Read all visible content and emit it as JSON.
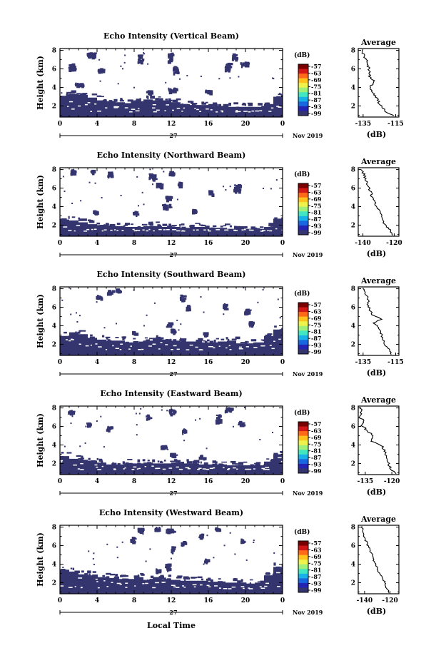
{
  "chart_data": {
    "type": "heatmap",
    "date_label": "Nov 2019",
    "day_label": "27",
    "xlabel_bottom": "Local Time",
    "x_ticks": [
      "0",
      "4",
      "8",
      "12",
      "16",
      "20",
      "0"
    ],
    "xlim": [
      0,
      24
    ],
    "ylabel": "Height (km)",
    "y_ticks": [
      "2",
      "4",
      "6",
      "8"
    ],
    "ylim": [
      0.8,
      8.2
    ],
    "colorbar": {
      "unit": "(dB)",
      "labels": [
        "-57",
        "-63",
        "-69",
        "-75",
        "-81",
        "-87",
        "-93",
        "-99"
      ],
      "colors": [
        "#7a0000",
        "#d01616",
        "#ff6a1a",
        "#ffc21c",
        "#eef24c",
        "#9ff07a",
        "#42e6c0",
        "#18b2e8",
        "#1866e0",
        "#2424b4",
        "#34346e"
      ]
    },
    "avg_title": "Average",
    "avg_xlabel": "(dB)",
    "panels": [
      {
        "title": "Echo Intensity (Vertical Beam)",
        "avg_ticks": [
          "-135",
          "-115"
        ],
        "avg_xlim": [
          -138,
          -113
        ],
        "layer_top": [
          3.1,
          3.3,
          3.2,
          2.9,
          2.6,
          2.5,
          2.4,
          2.3,
          2.5,
          2.7,
          2.6,
          2.6,
          2.4,
          2.2,
          2.1,
          2.1,
          2.2,
          2.0,
          1.9,
          1.9,
          1.9,
          1.9,
          2.2,
          3.0,
          3.6
        ],
        "clusters": [
          [
            1.2,
            6.3,
            0.6,
            0.7
          ],
          [
            3.2,
            7.6,
            0.9,
            0.4
          ],
          [
            4.3,
            5.9,
            0.6,
            0.4
          ],
          [
            2.0,
            4.4,
            0.8,
            0.3
          ],
          [
            8.6,
            7.2,
            0.5,
            0.9
          ],
          [
            11.8,
            7.3,
            0.4,
            1.0
          ],
          [
            12.4,
            6.0,
            0.5,
            0.7
          ],
          [
            18.0,
            6.3,
            0.6,
            0.8
          ],
          [
            18.7,
            7.4,
            0.4,
            0.6
          ],
          [
            19.8,
            6.6,
            0.8,
            0.4
          ],
          [
            12.0,
            3.8,
            0.8,
            0.4
          ],
          [
            15.9,
            3.6,
            0.7,
            0.3
          ],
          [
            9.5,
            3.6,
            0.5,
            0.3
          ]
        ],
        "avg_profile": [
          [
            0.9,
            -116
          ],
          [
            1.4,
            -121
          ],
          [
            2.0,
            -124
          ],
          [
            2.6,
            -126
          ],
          [
            3.2,
            -128
          ],
          [
            3.7,
            -130
          ],
          [
            4.2,
            -130
          ],
          [
            4.6,
            -128
          ],
          [
            5.2,
            -131
          ],
          [
            5.8,
            -131
          ],
          [
            6.4,
            -132
          ],
          [
            7.0,
            -133
          ],
          [
            7.6,
            -135
          ],
          [
            8.1,
            -135
          ]
        ]
      },
      {
        "title": "Echo Intensity (Northward Beam)",
        "avg_ticks": [
          "-140",
          "-120"
        ],
        "avg_xlim": [
          -143,
          -117
        ],
        "layer_top": [
          2.6,
          2.5,
          2.3,
          2.1,
          2.0,
          1.9,
          1.9,
          1.8,
          1.8,
          1.9,
          1.9,
          1.8,
          1.8,
          1.7,
          1.8,
          1.8,
          1.7,
          1.7,
          1.6,
          1.6,
          1.6,
          1.6,
          1.8,
          2.7,
          3.4
        ],
        "clusters": [
          [
            1.3,
            7.8,
            0.4,
            0.5
          ],
          [
            3.4,
            7.9,
            0.3,
            0.3
          ],
          [
            5.3,
            7.6,
            0.4,
            0.5
          ],
          [
            9.9,
            7.3,
            0.7,
            0.6
          ],
          [
            10.6,
            6.4,
            0.5,
            0.4
          ],
          [
            11.9,
            7.7,
            0.4,
            0.4
          ],
          [
            11.4,
            4.1,
            0.8,
            0.4
          ],
          [
            11.6,
            5.0,
            0.6,
            0.4
          ],
          [
            12.8,
            6.5,
            0.3,
            0.4
          ],
          [
            16.2,
            5.6,
            0.4,
            0.4
          ],
          [
            19.0,
            6.1,
            0.6,
            0.7
          ],
          [
            3.7,
            3.5,
            0.4,
            0.3
          ],
          [
            8.1,
            3.4,
            0.5,
            0.3
          ],
          [
            14.4,
            3.6,
            0.4,
            0.3
          ]
        ],
        "avg_profile": [
          [
            0.9,
            -121
          ],
          [
            1.5,
            -123
          ],
          [
            2.0,
            -126
          ],
          [
            2.6,
            -127
          ],
          [
            3.2,
            -128
          ],
          [
            3.8,
            -131
          ],
          [
            4.4,
            -132
          ],
          [
            5.0,
            -134
          ],
          [
            5.6,
            -135
          ],
          [
            6.2,
            -137
          ],
          [
            6.8,
            -138
          ],
          [
            7.4,
            -139
          ],
          [
            8.0,
            -141
          ]
        ]
      },
      {
        "title": "Echo Intensity (Southward Beam)",
        "avg_ticks": [
          "-135",
          "-115"
        ],
        "avg_xlim": [
          -138,
          -113
        ],
        "layer_top": [
          2.9,
          3.3,
          3.1,
          2.7,
          2.5,
          2.4,
          2.4,
          2.2,
          2.2,
          2.4,
          2.7,
          2.5,
          2.4,
          2.3,
          2.3,
          2.2,
          2.2,
          2.3,
          2.4,
          2.1,
          2.1,
          2.2,
          2.9,
          3.6,
          3.4
        ],
        "clusters": [
          [
            5.3,
            7.7,
            0.6,
            0.4
          ],
          [
            6.2,
            7.9,
            0.4,
            0.3
          ],
          [
            4.1,
            7.2,
            0.5,
            0.3
          ],
          [
            13.1,
            7.1,
            0.4,
            0.6
          ],
          [
            13.7,
            6.0,
            0.3,
            0.6
          ],
          [
            17.7,
            6.2,
            0.4,
            0.6
          ],
          [
            20.1,
            5.6,
            0.5,
            0.5
          ],
          [
            20.5,
            4.3,
            0.4,
            0.4
          ],
          [
            11.7,
            4.2,
            0.6,
            0.4
          ],
          [
            12.1,
            3.5,
            0.4,
            0.4
          ],
          [
            7.9,
            3.3,
            0.4,
            0.3
          ],
          [
            15.6,
            3.2,
            0.4,
            0.3
          ]
        ],
        "avg_profile": [
          [
            0.9,
            -117
          ],
          [
            1.5,
            -119
          ],
          [
            2.0,
            -122
          ],
          [
            2.6,
            -123
          ],
          [
            3.2,
            -124
          ],
          [
            3.8,
            -125
          ],
          [
            4.3,
            -128
          ],
          [
            4.7,
            -124
          ],
          [
            5.2,
            -129
          ],
          [
            5.8,
            -131
          ],
          [
            6.4,
            -132
          ],
          [
            7.0,
            -132
          ],
          [
            7.6,
            -134
          ],
          [
            8.1,
            -135
          ]
        ]
      },
      {
        "title": "Echo Intensity (Eastward Beam)",
        "avg_ticks": [
          "-135",
          "-120"
        ],
        "avg_xlim": [
          -139,
          -116
        ],
        "layer_top": [
          2.8,
          2.5,
          2.4,
          2.3,
          2.1,
          1.9,
          1.9,
          2.0,
          2.0,
          2.1,
          2.0,
          2.0,
          2.1,
          2.0,
          2.0,
          1.9,
          1.9,
          1.9,
          1.8,
          1.8,
          1.8,
          1.8,
          2.2,
          3.0,
          3.3
        ],
        "clusters": [
          [
            1.1,
            7.7,
            0.5,
            0.3
          ],
          [
            3.0,
            6.3,
            0.4,
            0.3
          ],
          [
            5.2,
            5.9,
            0.5,
            0.4
          ],
          [
            9.4,
            7.1,
            0.4,
            0.4
          ],
          [
            12.0,
            7.7,
            0.6,
            0.5
          ],
          [
            13.3,
            5.6,
            0.3,
            0.4
          ],
          [
            17.0,
            6.9,
            0.5,
            0.9
          ],
          [
            18.1,
            7.9,
            0.7,
            0.4
          ],
          [
            19.4,
            6.4,
            0.5,
            0.4
          ],
          [
            11.1,
            3.9,
            0.6,
            0.3
          ],
          [
            12.1,
            3.0,
            0.5,
            0.3
          ],
          [
            15.2,
            2.8,
            0.5,
            0.3
          ]
        ],
        "avg_profile": [
          [
            0.9,
            -118
          ],
          [
            1.5,
            -121
          ],
          [
            2.0,
            -122
          ],
          [
            2.6,
            -123
          ],
          [
            3.2,
            -124
          ],
          [
            3.8,
            -125
          ],
          [
            4.4,
            -131
          ],
          [
            5.0,
            -131
          ],
          [
            5.6,
            -134
          ],
          [
            6.1,
            -137
          ],
          [
            6.6,
            -136
          ],
          [
            7.0,
            -138
          ],
          [
            7.6,
            -137
          ],
          [
            8.1,
            -138
          ]
        ]
      },
      {
        "title": "Echo Intensity (Westward Beam)",
        "avg_ticks": [
          "-140",
          "-120"
        ],
        "avg_xlim": [
          -145,
          -113
        ],
        "layer_top": [
          3.4,
          3.2,
          2.9,
          2.8,
          2.6,
          2.5,
          2.4,
          2.4,
          2.6,
          2.3,
          2.6,
          2.4,
          2.3,
          2.2,
          2.2,
          2.2,
          2.1,
          2.0,
          2.0,
          2.0,
          1.9,
          2.0,
          2.8,
          3.7,
          4.3
        ],
        "clusters": [
          [
            7.7,
            6.7,
            0.3,
            0.6
          ],
          [
            8.6,
            7.8,
            0.5,
            0.4
          ],
          [
            10.4,
            7.9,
            0.5,
            0.3
          ],
          [
            11.8,
            7.7,
            0.8,
            0.4
          ],
          [
            13.2,
            6.3,
            0.4,
            0.5
          ],
          [
            15.1,
            7.1,
            0.4,
            0.4
          ],
          [
            16.9,
            7.9,
            0.5,
            0.3
          ],
          [
            19.6,
            6.6,
            0.3,
            0.4
          ],
          [
            12.1,
            5.7,
            0.3,
            0.6
          ],
          [
            11.5,
            3.8,
            0.4,
            0.6
          ],
          [
            10.5,
            3.4,
            0.4,
            0.3
          ],
          [
            15.7,
            4.5,
            0.4,
            0.3
          ]
        ],
        "avg_profile": [
          [
            0.9,
            -120
          ],
          [
            1.5,
            -123
          ],
          [
            2.0,
            -124
          ],
          [
            2.6,
            -126
          ],
          [
            3.2,
            -129
          ],
          [
            3.8,
            -131
          ],
          [
            4.4,
            -133
          ],
          [
            5.0,
            -134
          ],
          [
            5.6,
            -136
          ],
          [
            6.2,
            -138
          ],
          [
            6.8,
            -140
          ],
          [
            7.4,
            -141
          ],
          [
            8.1,
            -142
          ]
        ]
      }
    ]
  }
}
